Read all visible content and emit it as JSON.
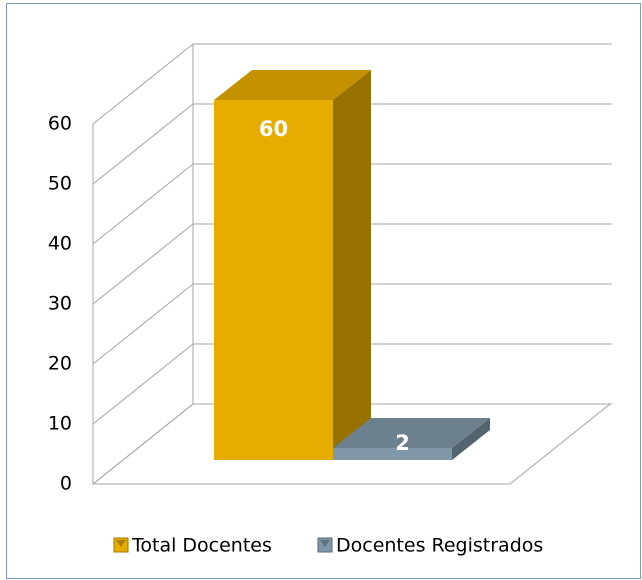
{
  "chart_data": {
    "type": "bar3d",
    "categories": [
      null
    ],
    "series": [
      {
        "name": "Total Docentes",
        "color": "#e6ac00",
        "values": [
          60
        ]
      },
      {
        "name": "Docentes Registrados",
        "color": "#7f97a6",
        "values": [
          2
        ]
      }
    ],
    "ylim": [
      0,
      60
    ],
    "yticks": [
      0,
      10,
      20,
      30,
      40,
      50,
      60
    ],
    "grid": true,
    "legend": "bottom"
  }
}
